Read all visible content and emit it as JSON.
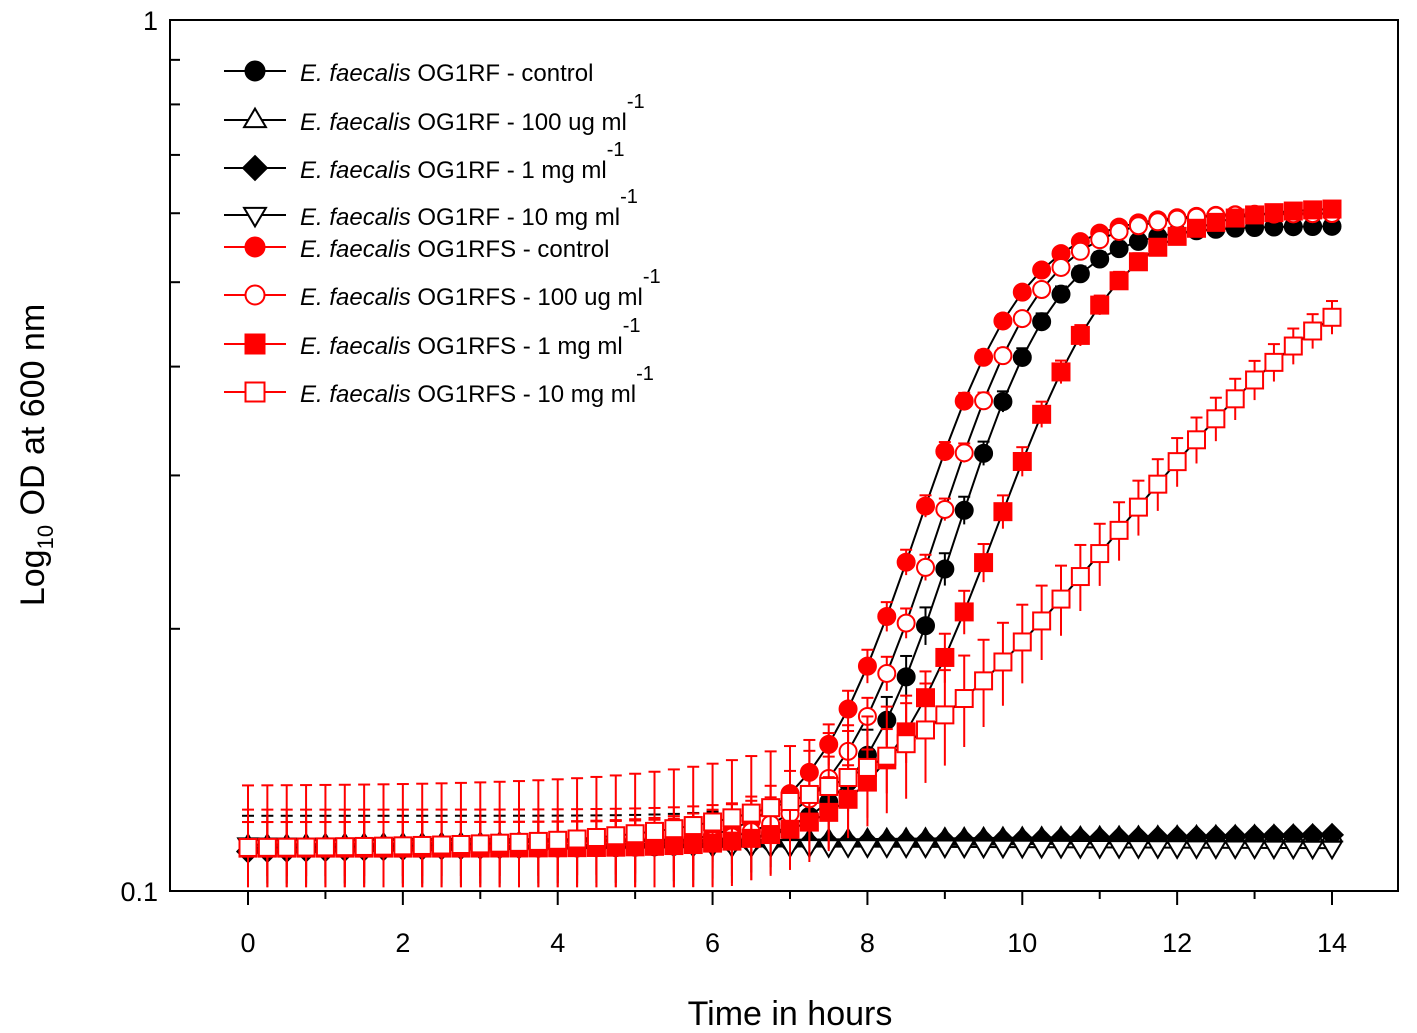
{
  "chart_data": {
    "type": "line",
    "title": "",
    "xlabel": "Time in hours",
    "ylabel": {
      "prefix": "Log",
      "subscript": "10",
      "suffix": " OD at 600 nm"
    },
    "xlim": [
      -1,
      15
    ],
    "ylim": [
      0.1,
      1
    ],
    "yscale": "log",
    "x_ticks": [
      "0",
      "2",
      "4",
      "6",
      "8",
      "10",
      "12",
      "14"
    ],
    "y_ticks": [
      "0.1",
      "1"
    ],
    "legend_position": "top-left",
    "x_step_hours": 0.25,
    "series": [
      {
        "name": "E. faecalis OG1RF - control",
        "species": "E. faecalis",
        "strain": "OG1RF",
        "treatment": "control",
        "superscript": "",
        "marker": "circle",
        "fill": "#000000",
        "stroke": "#000000",
        "error": 0.01,
        "model": {
          "base": 0.112,
          "top": 0.58,
          "midpoint": 9.65,
          "rate": 1.6
        }
      },
      {
        "name": "E. faecalis OG1RF - 100 ug ml-1",
        "species": "E. faecalis",
        "strain": "OG1RF",
        "treatment": "- 100 ug ml",
        "superscript": "-1",
        "marker": "triangle-up",
        "fill": "#ffffff",
        "stroke": "#000000",
        "error": 0.002,
        "linear": {
          "start": 0.113,
          "end": 0.116
        }
      },
      {
        "name": "E. faecalis OG1RF - 1 mg ml-1",
        "species": "E. faecalis",
        "strain": "OG1RF",
        "treatment": "- 1 mg ml",
        "superscript": "-1",
        "marker": "diamond",
        "fill": "#000000",
        "stroke": "#000000",
        "error": 0.002,
        "linear": {
          "start": 0.111,
          "end": 0.116
        }
      },
      {
        "name": "E. faecalis OG1RF - 10 mg ml-1",
        "species": "E. faecalis",
        "strain": "OG1RF",
        "treatment": "- 10 mg ml",
        "superscript": "-1",
        "marker": "triangle-down",
        "fill": "#ffffff",
        "stroke": "#000000",
        "error": 0.002,
        "linear": {
          "start": 0.113,
          "end": 0.112
        }
      },
      {
        "name": "E. faecalis OG1RFS - control",
        "species": "E. faecalis",
        "strain": "OG1RFS",
        "treatment": "control",
        "superscript": "",
        "marker": "circle",
        "fill": "#ff0000",
        "stroke": "#ff0000",
        "error": 0.008,
        "model": {
          "base": 0.112,
          "top": 0.6,
          "midpoint": 9.2,
          "rate": 1.5
        }
      },
      {
        "name": "E. faecalis OG1RFS - 100 ug ml-1",
        "species": "E. faecalis",
        "strain": "OG1RFS",
        "treatment": "- 100 ug ml",
        "superscript": "-1",
        "marker": "circle",
        "fill": "#ffffff",
        "stroke": "#ff0000",
        "error": 0.008,
        "model": {
          "base": 0.112,
          "top": 0.6,
          "midpoint": 9.45,
          "rate": 1.55
        }
      },
      {
        "name": "E. faecalis OG1RFS - 1 mg ml-1",
        "species": "E. faecalis",
        "strain": "OG1RFS",
        "treatment": "- 1 mg ml",
        "superscript": "-1",
        "marker": "square",
        "fill": "#ff0000",
        "stroke": "#ff0000",
        "error": 0.012,
        "model": {
          "base": 0.112,
          "top": 0.61,
          "midpoint": 10.3,
          "rate": 1.35
        }
      },
      {
        "name": "E. faecalis OG1RFS - 10 mg ml-1",
        "species": "E. faecalis",
        "strain": "OG1RFS",
        "treatment": "- 10 mg ml",
        "superscript": "-1",
        "marker": "square",
        "fill": "#ffffff",
        "stroke": "#ff0000",
        "error": 0.02,
        "model": {
          "base": 0.112,
          "top": 0.6,
          "midpoint": 12.6,
          "rate": 0.62
        }
      }
    ]
  }
}
